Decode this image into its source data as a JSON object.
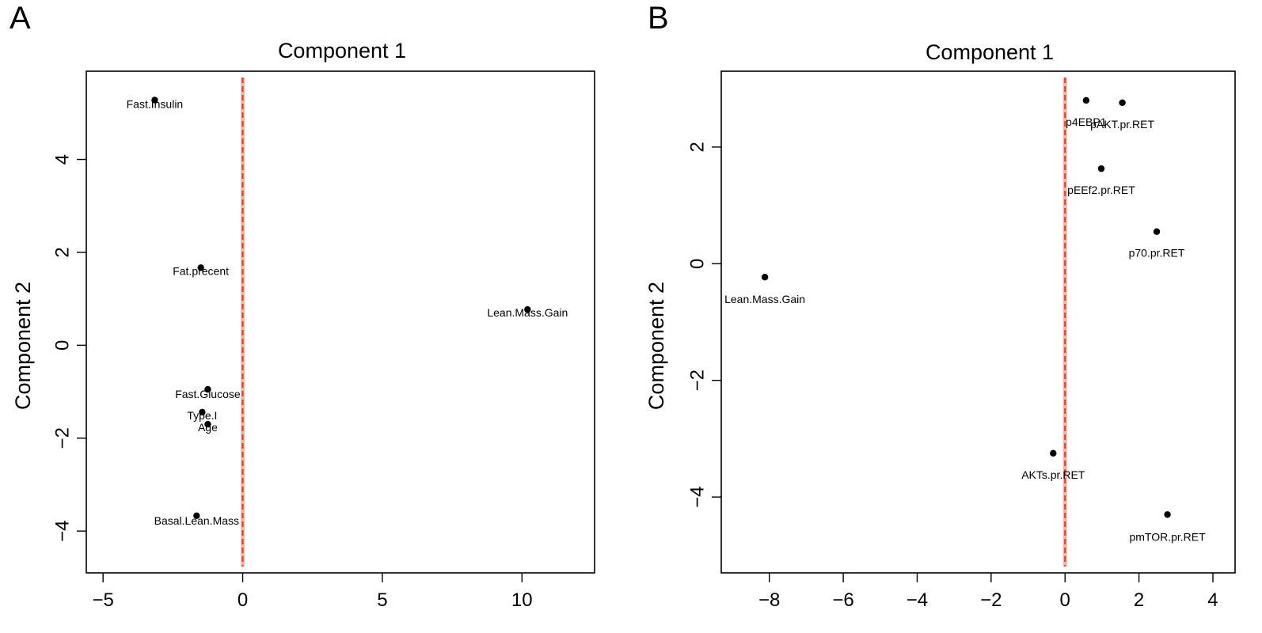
{
  "chart_data": [
    {
      "type": "scatter",
      "panel_label": "A",
      "title": "Component 1",
      "xlabel": "",
      "ylabel": "Component 2",
      "xlim": [
        -5.6,
        12.6
      ],
      "ylim": [
        -4.9,
        5.9
      ],
      "xticks": [
        -5,
        0,
        5,
        10
      ],
      "yticks": [
        -4,
        -2,
        0,
        2,
        4
      ],
      "xtick_labels": [
        "−5",
        "0",
        "5",
        "10"
      ],
      "ytick_labels": [
        "−4",
        "−2",
        "0",
        "2",
        "4"
      ],
      "reference_line": {
        "x": 0,
        "color": "#e03a1e",
        "style": "dashed"
      },
      "grid": false,
      "points": [
        {
          "label": "Fast.Insulin",
          "x": -3.15,
          "y": 5.28
        },
        {
          "label": "Fat.precent",
          "x": -1.5,
          "y": 1.67
        },
        {
          "label": "Lean.Mass.Gain",
          "x": 10.2,
          "y": 0.77
        },
        {
          "label": "Fast.Glucose",
          "x": -1.25,
          "y": -0.95
        },
        {
          "label": "Type.I",
          "x": -1.45,
          "y": -1.44
        },
        {
          "label": "Age",
          "x": -1.25,
          "y": -1.7
        },
        {
          "label": "Basal.Lean.Mass",
          "x": -1.65,
          "y": -3.67
        }
      ]
    },
    {
      "type": "scatter",
      "panel_label": "B",
      "title": "Component 1",
      "xlabel": "",
      "ylabel": "Component 2",
      "xlim": [
        -9.3,
        4.6
      ],
      "ylim": [
        -5.3,
        3.3
      ],
      "xticks": [
        -8,
        -6,
        -4,
        -2,
        0,
        2,
        4
      ],
      "yticks": [
        -4,
        -2,
        0,
        2
      ],
      "xtick_labels": [
        "−8",
        "−6",
        "−4",
        "−2",
        "0",
        "2",
        "4"
      ],
      "ytick_labels": [
        "−4",
        "−2",
        "0",
        "2"
      ],
      "reference_line": {
        "x": 0,
        "color": "#e03a1e",
        "style": "dashed"
      },
      "grid": false,
      "points": [
        {
          "label": "p4EBP1",
          "x": 0.57,
          "y": 2.8
        },
        {
          "label": "pAKT.pr.RET",
          "x": 1.55,
          "y": 2.76
        },
        {
          "label": "pEEf2.pr.RET",
          "x": 0.98,
          "y": 1.63
        },
        {
          "label": "p70.pr.RET",
          "x": 2.48,
          "y": 0.55
        },
        {
          "label": "Lean.Mass.Gain",
          "x": -8.12,
          "y": -0.23
        },
        {
          "label": "AKTs.pr.RET",
          "x": -0.32,
          "y": -3.25
        },
        {
          "label": "pmTOR.pr.RET",
          "x": 2.77,
          "y": -4.3
        }
      ]
    }
  ]
}
